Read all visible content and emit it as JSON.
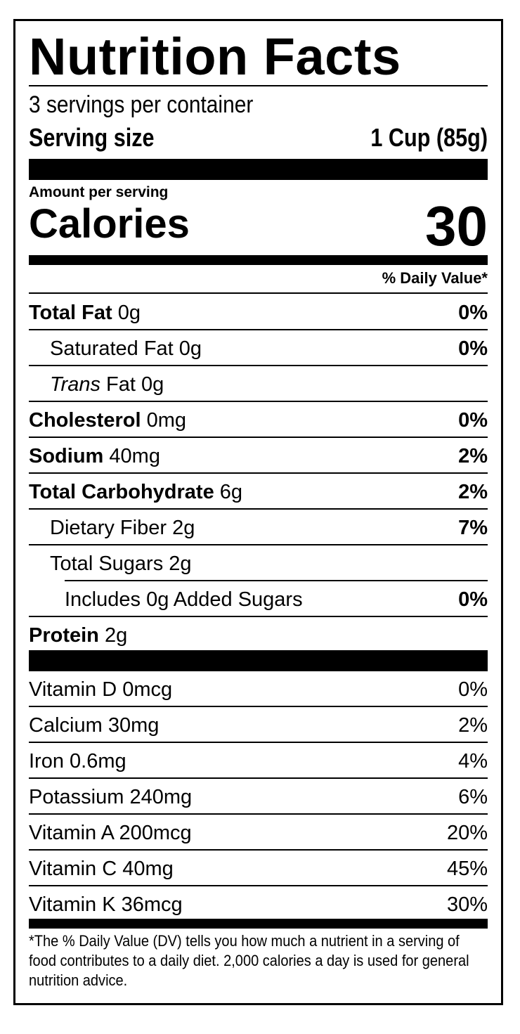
{
  "title": "Nutrition Facts",
  "servings_per_container": "3 servings per container",
  "serving_size": {
    "label": "Serving size",
    "value": "1 Cup (85g)"
  },
  "amount_per_serving": "Amount per serving",
  "calories": {
    "label": "Calories",
    "value": "30"
  },
  "daily_value_header": "% Daily Value*",
  "nutrients": [
    {
      "name": "Total Fat",
      "amount": "0g",
      "dv": "0%"
    },
    {
      "name": "Saturated Fat",
      "amount": "0g",
      "dv": "0%"
    },
    {
      "name": "Trans",
      "name_suffix": " Fat",
      "amount": "0g",
      "dv": ""
    },
    {
      "name": "Cholesterol",
      "amount": "0mg",
      "dv": "0%"
    },
    {
      "name": "Sodium",
      "amount": "40mg",
      "dv": "2%"
    },
    {
      "name": "Total Carbohydrate",
      "amount": "6g",
      "dv": "2%"
    },
    {
      "name": "Dietary Fiber",
      "amount": "2g",
      "dv": "7%"
    },
    {
      "name": "Total Sugars",
      "amount": "2g",
      "dv": ""
    },
    {
      "name": "Includes 0g Added Sugars",
      "amount": "",
      "dv": "0%"
    },
    {
      "name": "Protein",
      "amount": "2g",
      "dv": ""
    }
  ],
  "vitamins": [
    {
      "name": "Vitamin D",
      "amount": "0mcg",
      "dv": "0%"
    },
    {
      "name": "Calcium",
      "amount": "30mg",
      "dv": "2%"
    },
    {
      "name": "Iron",
      "amount": "0.6mg",
      "dv": "4%"
    },
    {
      "name": "Potassium",
      "amount": "240mg",
      "dv": "6%"
    },
    {
      "name": "Vitamin A",
      "amount": "200mcg",
      "dv": "20%"
    },
    {
      "name": "Vitamin C",
      "amount": "40mg",
      "dv": "45%"
    },
    {
      "name": "Vitamin K",
      "amount": "36mcg",
      "dv": "30%"
    }
  ],
  "footnote": "*The % Daily Value (DV) tells you how much a nutrient in a serving of food contributes to a daily diet. 2,000 calories a day is used for general nutrition advice."
}
